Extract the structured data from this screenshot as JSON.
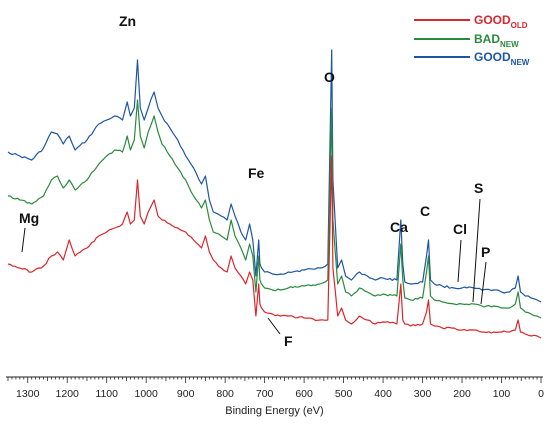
{
  "chart_data": {
    "type": "line",
    "xlabel": "Binding Energy (eV)",
    "ylabel": "",
    "xlim": [
      1350,
      0
    ],
    "x_ticks": [
      1300,
      1200,
      1100,
      1000,
      900,
      800,
      700,
      600,
      500,
      400,
      300,
      200,
      100,
      0
    ],
    "y_axis_visible": false,
    "grid": false,
    "legend_position": "top-right",
    "colors": {
      "good_old": "#d9262b",
      "bad_new": "#2a8a3c",
      "good_new": "#1d55a3"
    },
    "legend": [
      {
        "key": "good_old",
        "main": "GOOD",
        "sub": "OLD"
      },
      {
        "key": "bad_new",
        "main": "BAD",
        "sub": "NEW"
      },
      {
        "key": "good_new",
        "main": "GOOD",
        "sub": "NEW"
      }
    ],
    "series": [
      {
        "key": "good_new",
        "x": [
          1350,
          1320,
          1290,
          1260,
          1240,
          1225,
          1210,
          1195,
          1180,
          1150,
          1120,
          1100,
          1080,
          1060,
          1048,
          1040,
          1030,
          1022,
          1015,
          1005,
          995,
          980,
          970,
          960,
          940,
          920,
          900,
          880,
          860,
          850,
          840,
          830,
          810,
          795,
          785,
          775,
          760,
          748,
          738,
          730,
          722,
          715,
          712,
          708,
          700,
          680,
          660,
          640,
          600,
          560,
          540,
          533,
          530,
          527,
          515,
          505,
          495,
          480,
          460,
          440,
          420,
          400,
          365,
          355,
          350,
          345,
          330,
          300,
          290,
          285,
          280,
          270,
          250,
          220,
          200,
          170,
          150,
          120,
          100,
          80,
          65,
          58,
          52,
          40,
          25,
          10,
          0
        ],
        "y": [
          74,
          72,
          70,
          76,
          84,
          83,
          78,
          82,
          75,
          80,
          88,
          90,
          92,
          90,
          99,
          92,
          96,
          120,
          96,
          90,
          96,
          104,
          96,
          92,
          86,
          80,
          72,
          66,
          58,
          62,
          50,
          44,
          42,
          40,
          48,
          42,
          34,
          30,
          38,
          30,
          12,
          30,
          18,
          16,
          14,
          13,
          13,
          14,
          15,
          16,
          18,
          95,
          125,
          60,
          16,
          20,
          12,
          10,
          14,
          12,
          10,
          11,
          10,
          40,
          18,
          9,
          8,
          9,
          22,
          30,
          10,
          8,
          7,
          6,
          6,
          6,
          5,
          5,
          4,
          4,
          6,
          12,
          4,
          2,
          1,
          0,
          -1
        ]
      },
      {
        "key": "bad_new",
        "x": [
          1350,
          1320,
          1290,
          1260,
          1240,
          1225,
          1210,
          1195,
          1180,
          1150,
          1120,
          1100,
          1080,
          1060,
          1048,
          1040,
          1030,
          1022,
          1015,
          1005,
          995,
          980,
          970,
          960,
          940,
          920,
          900,
          880,
          860,
          850,
          840,
          830,
          810,
          795,
          785,
          775,
          760,
          748,
          738,
          730,
          722,
          715,
          712,
          708,
          700,
          680,
          660,
          640,
          600,
          560,
          540,
          533,
          530,
          527,
          515,
          505,
          495,
          480,
          460,
          440,
          420,
          400,
          365,
          355,
          350,
          345,
          330,
          300,
          290,
          285,
          280,
          270,
          250,
          220,
          200,
          170,
          150,
          120,
          100,
          80,
          65,
          58,
          52,
          40,
          25,
          10,
          0
        ],
        "y": [
          52,
          50,
          48,
          52,
          60,
          62,
          56,
          60,
          55,
          60,
          68,
          72,
          75,
          74,
          82,
          75,
          80,
          100,
          82,
          76,
          84,
          92,
          84,
          78,
          72,
          66,
          60,
          52,
          46,
          50,
          40,
          34,
          32,
          30,
          40,
          32,
          26,
          20,
          28,
          22,
          4,
          22,
          10,
          8,
          6,
          5,
          5,
          6,
          7,
          8,
          10,
          70,
          96,
          40,
          8,
          12,
          4,
          2,
          6,
          4,
          2,
          3,
          2,
          28,
          10,
          1,
          0,
          1,
          14,
          22,
          2,
          0,
          -1,
          -2,
          -2,
          -2,
          -3,
          -3,
          -4,
          -4,
          -2,
          4,
          -4,
          -6,
          -7,
          -8,
          -9
        ]
      },
      {
        "key": "good_old",
        "x": [
          1350,
          1320,
          1290,
          1260,
          1240,
          1225,
          1210,
          1195,
          1180,
          1150,
          1120,
          1100,
          1080,
          1060,
          1048,
          1040,
          1030,
          1022,
          1015,
          1005,
          995,
          980,
          970,
          960,
          940,
          920,
          900,
          880,
          860,
          850,
          840,
          830,
          810,
          795,
          785,
          775,
          760,
          748,
          738,
          730,
          722,
          715,
          712,
          708,
          700,
          680,
          660,
          640,
          600,
          560,
          540,
          533,
          530,
          527,
          515,
          505,
          495,
          480,
          460,
          440,
          420,
          400,
          365,
          355,
          350,
          345,
          330,
          300,
          290,
          285,
          280,
          270,
          250,
          220,
          200,
          170,
          150,
          120,
          100,
          80,
          65,
          58,
          52,
          40,
          25,
          10,
          0
        ],
        "y": [
          18,
          16,
          14,
          17,
          22,
          24,
          20,
          30,
          22,
          26,
          32,
          34,
          36,
          38,
          44,
          38,
          40,
          60,
          42,
          38,
          44,
          50,
          42,
          40,
          38,
          36,
          34,
          30,
          26,
          32,
          24,
          20,
          16,
          14,
          22,
          16,
          12,
          8,
          14,
          10,
          -8,
          8,
          -2,
          -4,
          -6,
          -7,
          -8,
          -8,
          -9,
          -10,
          -10,
          50,
          72,
          16,
          -8,
          -4,
          -10,
          -12,
          -8,
          -10,
          -12,
          -11,
          -12,
          8,
          -10,
          -12,
          -13,
          -12,
          -6,
          0,
          -12,
          -13,
          -14,
          -14,
          -15,
          -15,
          -16,
          -16,
          -16,
          -16,
          -15,
          -10,
          -16,
          -17,
          -18,
          -18,
          -19
        ]
      }
    ],
    "annotations": [
      {
        "label": "Mg",
        "x": 1305,
        "series": "good_old"
      },
      {
        "label": "Zn",
        "x": 1022,
        "series": "good_new"
      },
      {
        "label": "Fe",
        "x": 712,
        "series": "good_new"
      },
      {
        "label": "O",
        "x": 530,
        "series": "good_new"
      },
      {
        "label": "Ca",
        "x": 350,
        "series": "good_new"
      },
      {
        "label": "C",
        "x": 285,
        "series": "good_new"
      },
      {
        "label": "Cl",
        "x": 200,
        "series": "good_new"
      },
      {
        "label": "S",
        "x": 165,
        "series": "bad_new"
      },
      {
        "label": "P",
        "x": 135,
        "series": "bad_new"
      },
      {
        "label": "F",
        "x": 690,
        "series": "good_old"
      }
    ]
  }
}
